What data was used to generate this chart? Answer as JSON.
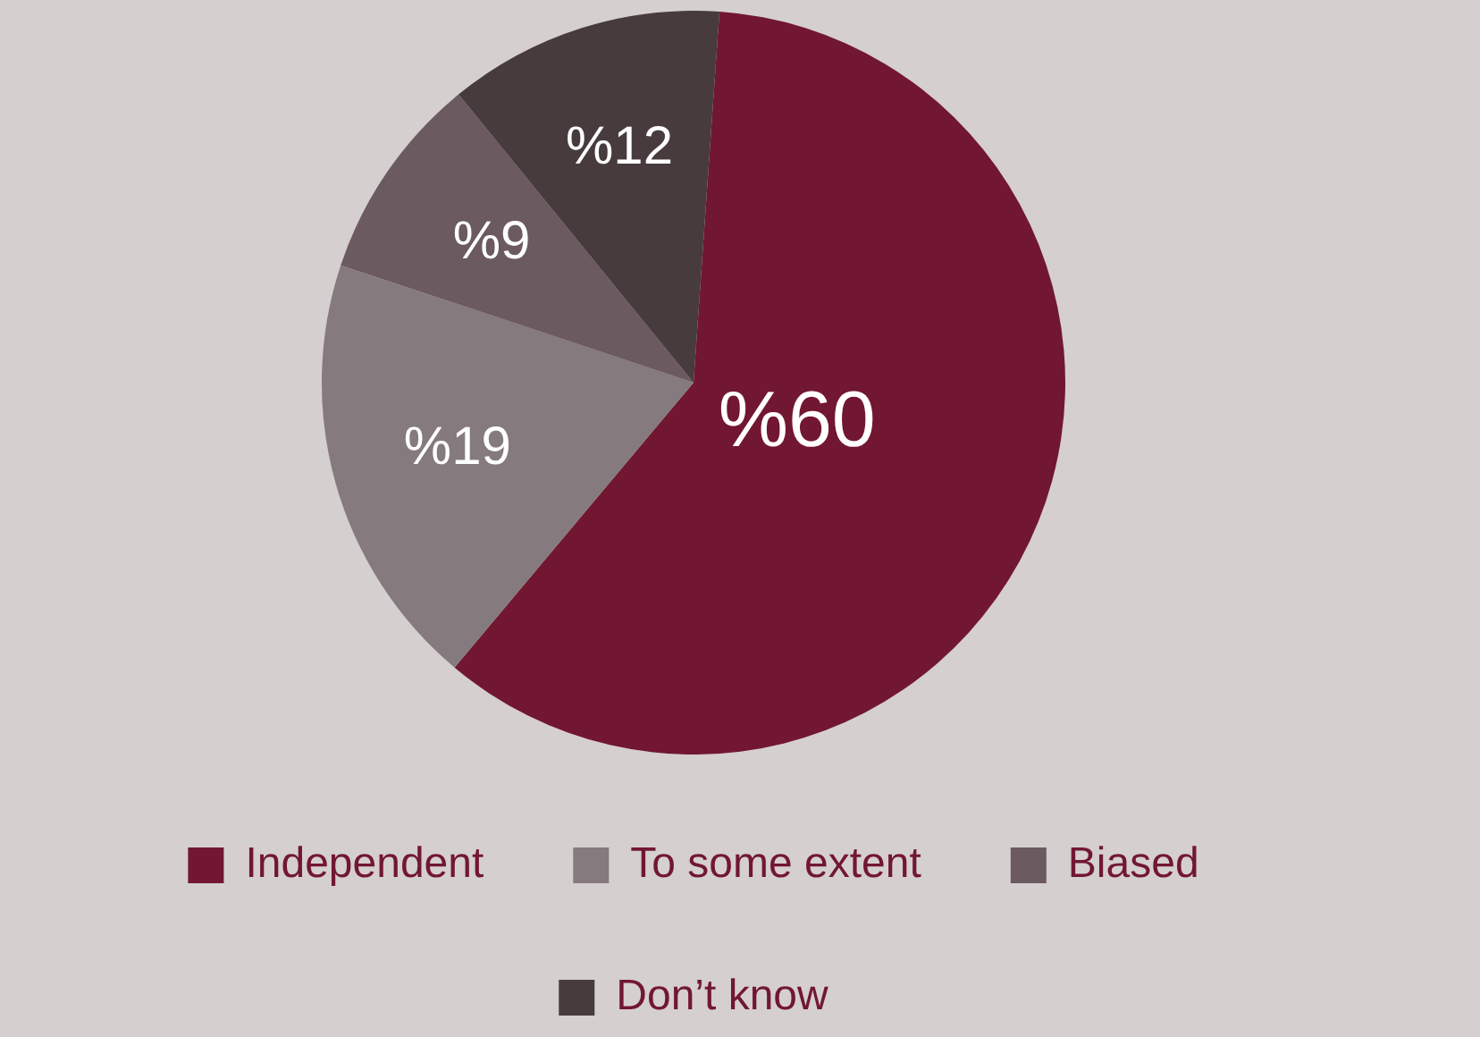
{
  "chart_data": {
    "type": "pie",
    "categories": [
      "Independent",
      "To some extent",
      "Biased",
      "Don’t know"
    ],
    "values": [
      60,
      19,
      9,
      12
    ],
    "colors": [
      "#721731",
      "#857a7d",
      "#6b5a5f",
      "#473b3d"
    ],
    "value_labels": [
      "%60",
      "%19",
      "%9",
      "%12"
    ],
    "legend": "bottom"
  }
}
